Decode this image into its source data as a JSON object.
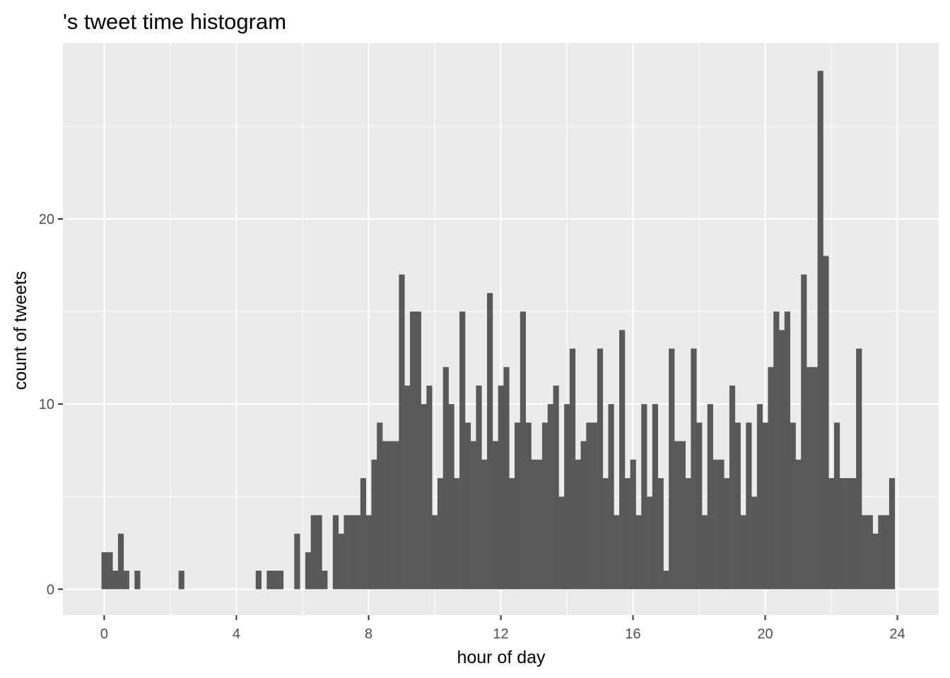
{
  "chart_data": {
    "type": "bar",
    "title": "'s tweet time histogram",
    "xlabel": "hour of day",
    "ylabel": "count of tweets",
    "xlim": [
      -1.25,
      25.25
    ],
    "ylim": [
      -1.4,
      29.5
    ],
    "x_ticks": [
      0,
      4,
      8,
      12,
      16,
      20,
      24
    ],
    "y_ticks": [
      0,
      10,
      20
    ],
    "grid": true,
    "legend": "none",
    "bar_color": "#595959",
    "panel_color": "#ebebeb",
    "bin_width": 0.16667,
    "bins_start": 0,
    "values": [
      2,
      2,
      1,
      3,
      1,
      0,
      1,
      0,
      0,
      0,
      0,
      0,
      0,
      0,
      1,
      0,
      0,
      0,
      0,
      0,
      0,
      0,
      0,
      0,
      0,
      0,
      0,
      0,
      1,
      0,
      1,
      1,
      1,
      0,
      0,
      3,
      0,
      2,
      4,
      4,
      1,
      0,
      4,
      3,
      4,
      4,
      4,
      6,
      4,
      7,
      9,
      8,
      8,
      8,
      17,
      11,
      15,
      15,
      10,
      11,
      4,
      6,
      12,
      10,
      6,
      15,
      9,
      8,
      11,
      7,
      16,
      8,
      11,
      12,
      6,
      9,
      15,
      9,
      7,
      7,
      9,
      10,
      11,
      5,
      10,
      13,
      7,
      8,
      9,
      9,
      13,
      6,
      10,
      4,
      14,
      6,
      7,
      4,
      10,
      5,
      10,
      6,
      1,
      13,
      8,
      8,
      6,
      13,
      9,
      4,
      10,
      7,
      7,
      6,
      11,
      9,
      4,
      9,
      5,
      10,
      9,
      12,
      15,
      14,
      15,
      9,
      7,
      17,
      12,
      12,
      28,
      18,
      6,
      9,
      6,
      6,
      6,
      13,
      4,
      4,
      3,
      4,
      4,
      6
    ]
  }
}
